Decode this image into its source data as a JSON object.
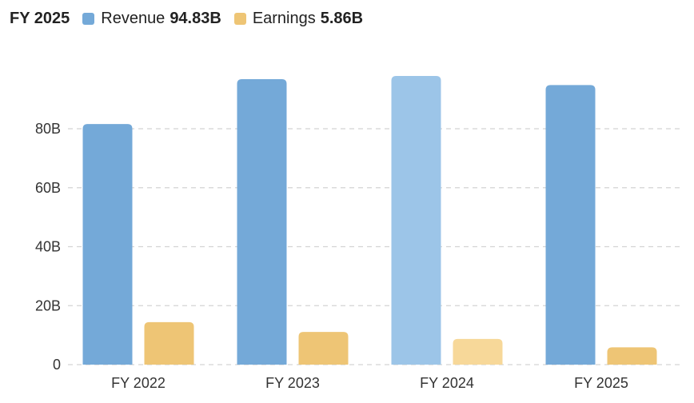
{
  "header": {
    "period": "FY 2025",
    "legend": [
      {
        "label": "Revenue",
        "value": "94.83B",
        "color": "#74a9d8"
      },
      {
        "label": "Earnings",
        "value": "5.86B",
        "color": "#eec575"
      }
    ]
  },
  "chart_data": {
    "type": "bar",
    "categories": [
      "FY 2022",
      "FY 2023",
      "FY 2024",
      "FY 2025"
    ],
    "series": [
      {
        "name": "Revenue",
        "values": [
          81.6,
          96.8,
          97.9,
          94.83
        ],
        "color": "#74a9d8",
        "highlight_color": "#9cc5e8"
      },
      {
        "name": "Earnings",
        "values": [
          14.4,
          11.1,
          8.7,
          5.86
        ],
        "color": "#eec575",
        "highlight_color": "#f7d899"
      }
    ],
    "highlighted_category": "FY 2024",
    "yticks": [
      0,
      20,
      40,
      60,
      80
    ],
    "ytick_labels": [
      "0",
      "20B",
      "40B",
      "60B",
      "80B"
    ],
    "ylim": [
      0,
      100
    ],
    "unit": "B",
    "grid": true
  }
}
